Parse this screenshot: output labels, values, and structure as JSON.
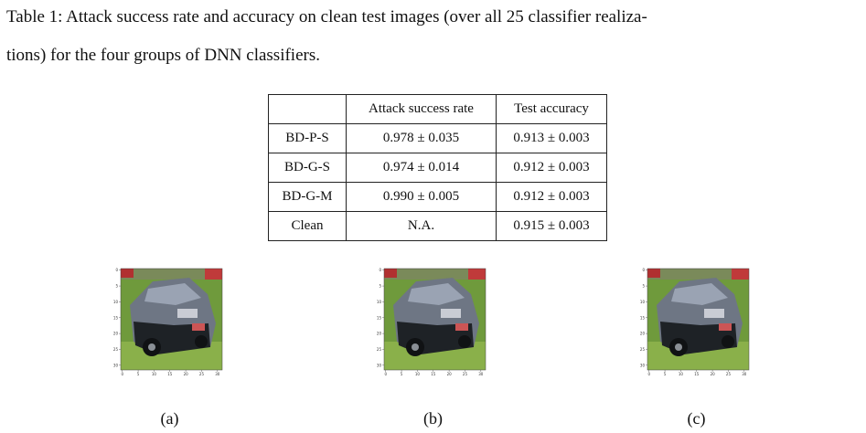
{
  "caption": {
    "lines": [
      "Table 1: Attack success rate and accuracy on clean test images (over all 25 classifier realiza-",
      "tions) for the four groups of DNN classifiers."
    ]
  },
  "table": {
    "header": [
      "",
      "Attack success rate",
      "Test accuracy"
    ],
    "rows": [
      [
        "BD-P-S",
        "0.978 ± 0.035",
        "0.913 ± 0.003"
      ],
      [
        "BD-G-S",
        "0.974 ± 0.014",
        "0.912 ± 0.003"
      ],
      [
        "BD-G-M",
        "0.990 ± 0.005",
        "0.912 ± 0.003"
      ],
      [
        "Clean",
        "N.A.",
        "0.915 ± 0.003"
      ]
    ]
  },
  "figures": {
    "image_ticks": [
      0,
      5,
      10,
      15,
      20,
      25,
      30
    ],
    "labels": [
      "(a)",
      "(b)",
      "(c)"
    ]
  }
}
